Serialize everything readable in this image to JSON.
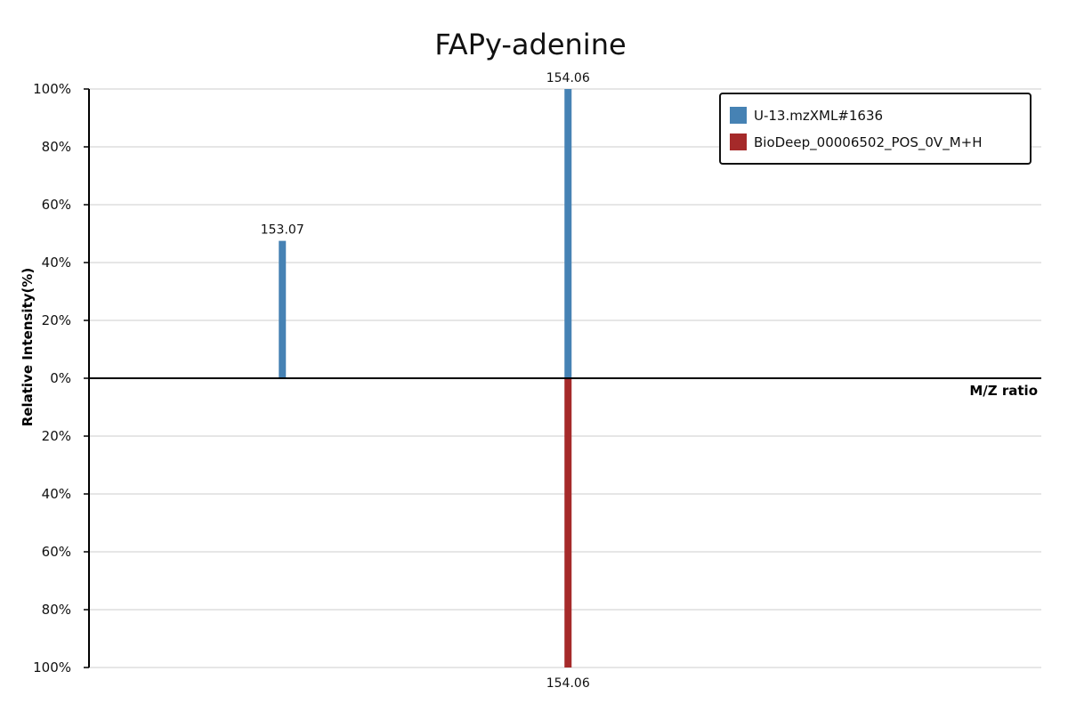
{
  "chart_data": {
    "type": "bar",
    "title": "FAPy-adenine",
    "xlabel": "M/Z ratio",
    "ylabel": "Relative Intensity(%)",
    "y_ticks_top": [
      "100%",
      "80%",
      "60%",
      "40%",
      "20%",
      "0%"
    ],
    "y_ticks_bottom": [
      "20%",
      "40%",
      "60%",
      "80%",
      "100%"
    ],
    "ylim": [
      -100,
      100
    ],
    "xlim": [
      152.4,
      155.7
    ],
    "grid": true,
    "legend_position": "top-right",
    "series": [
      {
        "name": "U-13.mzXML#1636",
        "color": "#4682B4",
        "direction": "up",
        "peaks": [
          {
            "mz": 153.07,
            "intensity": 47.5,
            "label": "153.07"
          },
          {
            "mz": 154.06,
            "intensity": 100,
            "label": "154.06"
          }
        ]
      },
      {
        "name": "BioDeep_00006502_POS_0V_M+H",
        "color": "#A52A2A",
        "direction": "down",
        "peaks": [
          {
            "mz": 154.06,
            "intensity": 100,
            "label": "154.06"
          }
        ]
      }
    ]
  }
}
